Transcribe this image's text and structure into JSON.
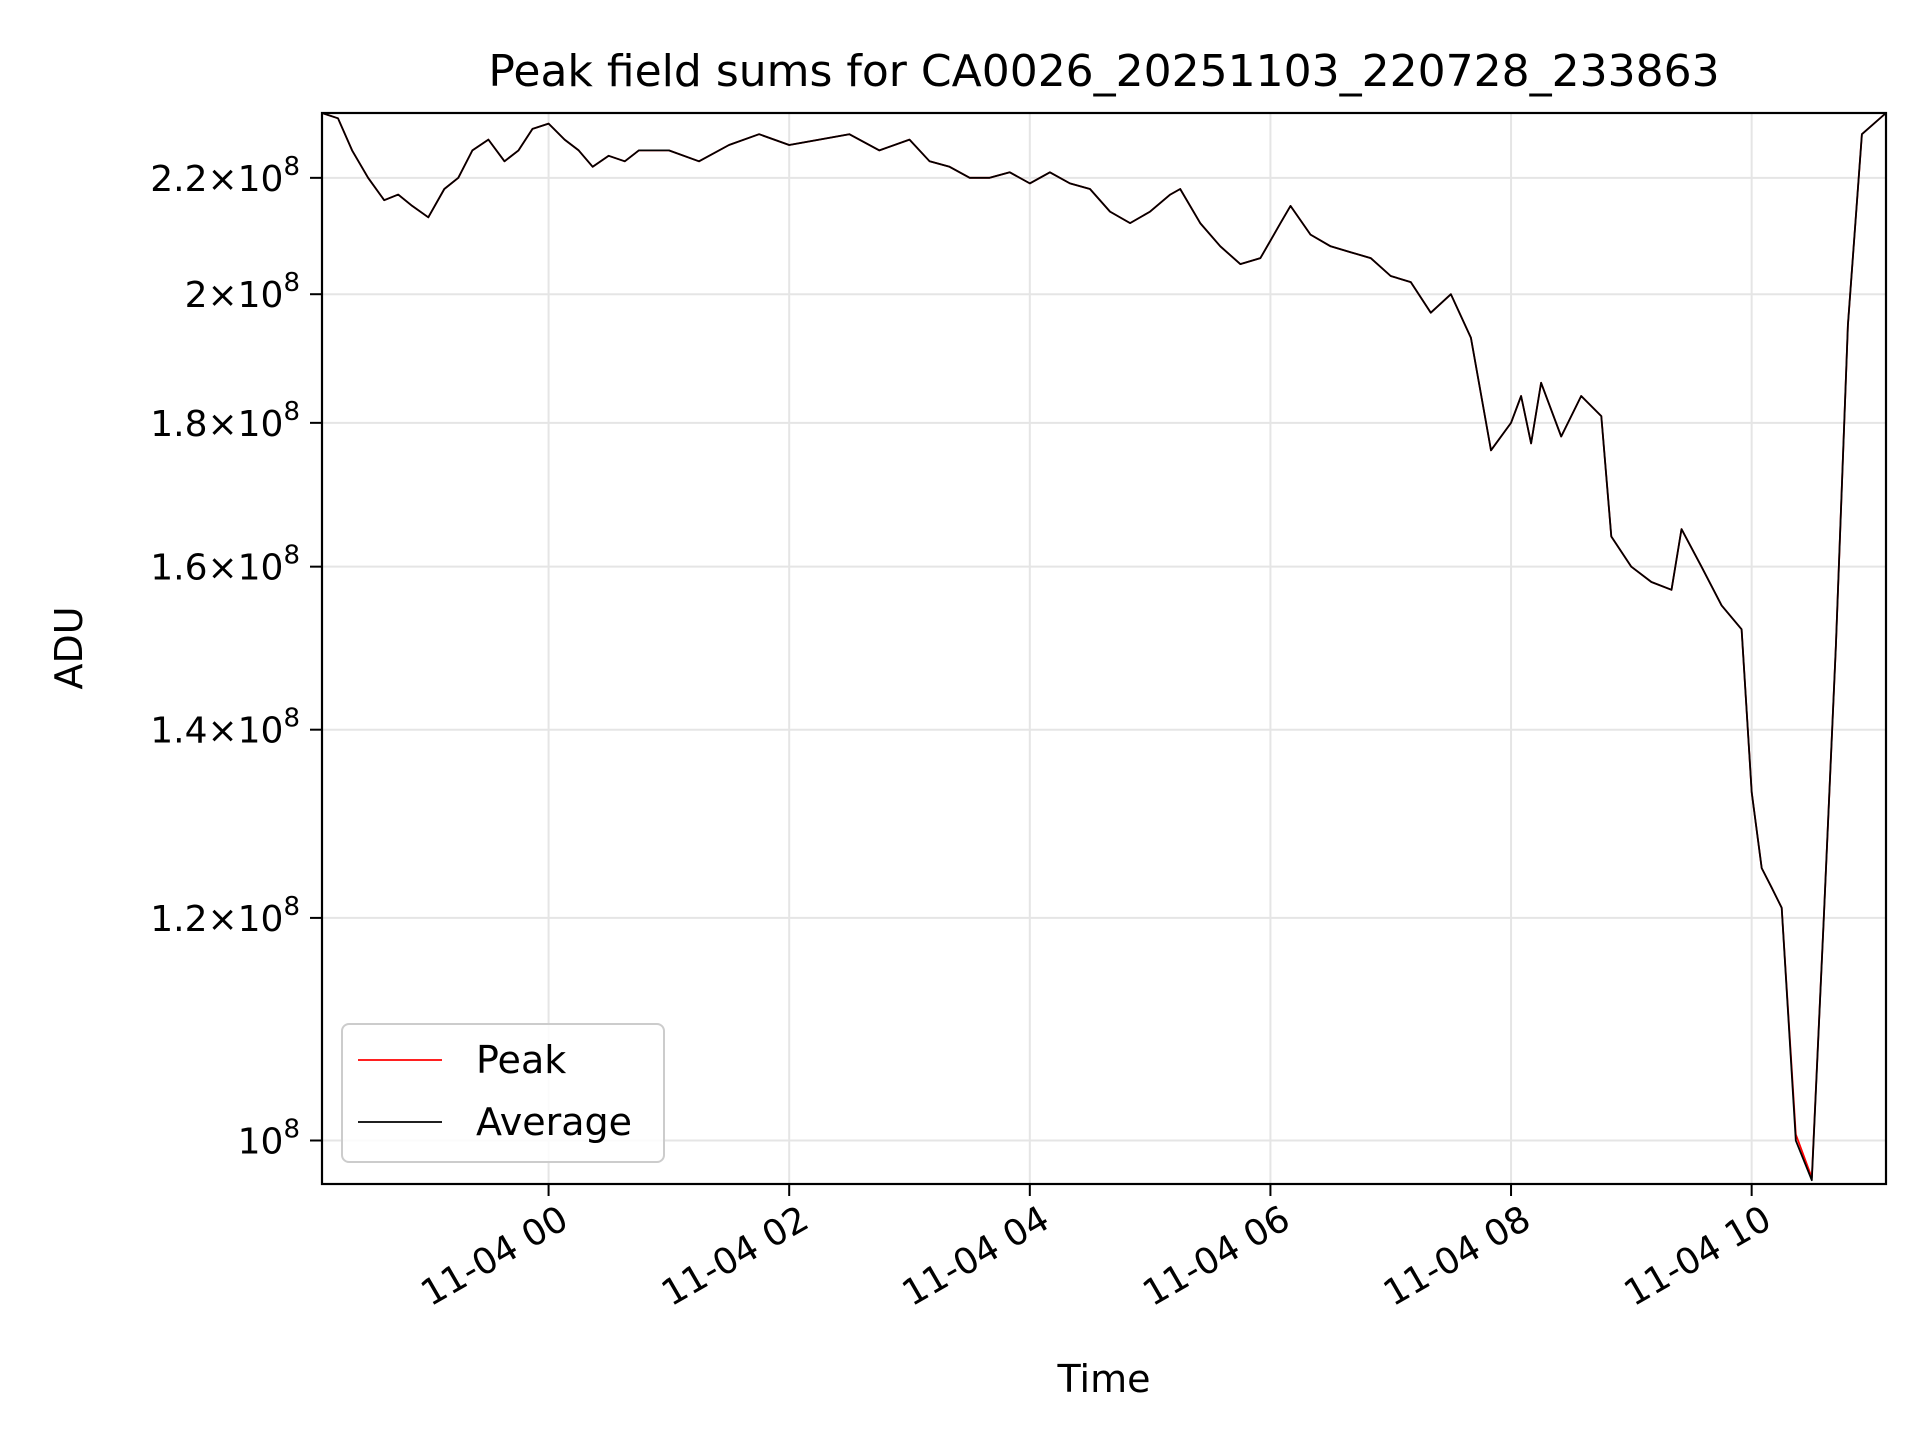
{
  "chart_data": {
    "type": "line",
    "title": "Peak field sums for CA0026_20251103_220728_233863",
    "xlabel": "Time",
    "ylabel": "ADU",
    "yscale": "log",
    "grid": true,
    "legend_position": "lower-left",
    "xlim": [
      "2025-11-03 22:07",
      "2025-11-04 11:07"
    ],
    "ylim": [
      96500000,
      232000000
    ],
    "x_ticks": [
      {
        "value": "2025-11-04 00:00",
        "label": "11-04 00"
      },
      {
        "value": "2025-11-04 02:00",
        "label": "11-04 02"
      },
      {
        "value": "2025-11-04 04:00",
        "label": "11-04 04"
      },
      {
        "value": "2025-11-04 06:00",
        "label": "11-04 06"
      },
      {
        "value": "2025-11-04 08:00",
        "label": "11-04 08"
      },
      {
        "value": "2025-11-04 10:00",
        "label": "11-04 10"
      }
    ],
    "y_ticks": [
      {
        "value": 100000000,
        "mantissa": "",
        "exponent": "8"
      },
      {
        "value": 120000000,
        "mantissa": "1.2",
        "exponent": "8"
      },
      {
        "value": 140000000,
        "mantissa": "1.4",
        "exponent": "8"
      },
      {
        "value": 160000000,
        "mantissa": "1.6",
        "exponent": "8"
      },
      {
        "value": 180000000,
        "mantissa": "1.8",
        "exponent": "8"
      },
      {
        "value": 200000000,
        "mantissa": "2",
        "exponent": "8"
      },
      {
        "value": 220000000,
        "mantissa": "2.2",
        "exponent": "8"
      }
    ],
    "series": [
      {
        "name": "Peak",
        "color": "#ff0000",
        "points": [
          [
            "2025-11-03 22:07",
            232000000
          ],
          [
            "2025-11-03 22:15",
            231000000
          ],
          [
            "2025-11-03 22:22",
            225000000
          ],
          [
            "2025-11-03 22:30",
            220000000
          ],
          [
            "2025-11-03 22:38",
            216000000
          ],
          [
            "2025-11-03 22:45",
            217000000
          ],
          [
            "2025-11-03 22:52",
            215000000
          ],
          [
            "2025-11-03 23:00",
            213000000
          ],
          [
            "2025-11-03 23:08",
            218000000
          ],
          [
            "2025-11-03 23:15",
            220000000
          ],
          [
            "2025-11-03 23:22",
            225000000
          ],
          [
            "2025-11-03 23:30",
            227000000
          ],
          [
            "2025-11-03 23:38",
            223000000
          ],
          [
            "2025-11-03 23:45",
            225000000
          ],
          [
            "2025-11-03 23:52",
            229000000
          ],
          [
            "2025-11-04 00:00",
            230000000
          ],
          [
            "2025-11-04 00:08",
            227000000
          ],
          [
            "2025-11-04 00:15",
            225000000
          ],
          [
            "2025-11-04 00:22",
            222000000
          ],
          [
            "2025-11-04 00:30",
            224000000
          ],
          [
            "2025-11-04 00:38",
            223000000
          ],
          [
            "2025-11-04 00:45",
            225000000
          ],
          [
            "2025-11-04 01:00",
            225000000
          ],
          [
            "2025-11-04 01:15",
            223000000
          ],
          [
            "2025-11-04 01:30",
            226000000
          ],
          [
            "2025-11-04 01:45",
            228000000
          ],
          [
            "2025-11-04 02:00",
            226000000
          ],
          [
            "2025-11-04 02:15",
            227000000
          ],
          [
            "2025-11-04 02:30",
            228000000
          ],
          [
            "2025-11-04 02:45",
            225000000
          ],
          [
            "2025-11-04 03:00",
            227000000
          ],
          [
            "2025-11-04 03:10",
            223000000
          ],
          [
            "2025-11-04 03:20",
            222000000
          ],
          [
            "2025-11-04 03:30",
            220000000
          ],
          [
            "2025-11-04 03:40",
            220000000
          ],
          [
            "2025-11-04 03:50",
            221000000
          ],
          [
            "2025-11-04 04:00",
            219000000
          ],
          [
            "2025-11-04 04:10",
            221000000
          ],
          [
            "2025-11-04 04:20",
            219000000
          ],
          [
            "2025-11-04 04:30",
            218000000
          ],
          [
            "2025-11-04 04:40",
            214000000
          ],
          [
            "2025-11-04 04:50",
            212000000
          ],
          [
            "2025-11-04 05:00",
            214000000
          ],
          [
            "2025-11-04 05:10",
            217000000
          ],
          [
            "2025-11-04 05:15",
            218000000
          ],
          [
            "2025-11-04 05:25",
            212000000
          ],
          [
            "2025-11-04 05:35",
            208000000
          ],
          [
            "2025-11-04 05:45",
            205000000
          ],
          [
            "2025-11-04 05:55",
            206000000
          ],
          [
            "2025-11-04 06:05",
            212000000
          ],
          [
            "2025-11-04 06:10",
            215000000
          ],
          [
            "2025-11-04 06:20",
            210000000
          ],
          [
            "2025-11-04 06:30",
            208000000
          ],
          [
            "2025-11-04 06:40",
            207000000
          ],
          [
            "2025-11-04 06:50",
            206000000
          ],
          [
            "2025-11-04 07:00",
            203000000
          ],
          [
            "2025-11-04 07:10",
            202000000
          ],
          [
            "2025-11-04 07:20",
            197000000
          ],
          [
            "2025-11-04 07:30",
            200000000
          ],
          [
            "2025-11-04 07:40",
            193000000
          ],
          [
            "2025-11-04 07:50",
            176000000
          ],
          [
            "2025-11-04 08:00",
            180000000
          ],
          [
            "2025-11-04 08:05",
            184000000
          ],
          [
            "2025-11-04 08:10",
            177000000
          ],
          [
            "2025-11-04 08:15",
            186000000
          ],
          [
            "2025-11-04 08:25",
            178000000
          ],
          [
            "2025-11-04 08:35",
            184000000
          ],
          [
            "2025-11-04 08:45",
            181000000
          ],
          [
            "2025-11-04 08:50",
            164000000
          ],
          [
            "2025-11-04 09:00",
            160000000
          ],
          [
            "2025-11-04 09:10",
            158000000
          ],
          [
            "2025-11-04 09:20",
            157000000
          ],
          [
            "2025-11-04 09:25",
            165000000
          ],
          [
            "2025-11-04 09:35",
            160000000
          ],
          [
            "2025-11-04 09:45",
            155000000
          ],
          [
            "2025-11-04 09:55",
            152000000
          ],
          [
            "2025-11-04 10:00",
            133000000
          ],
          [
            "2025-11-04 10:05",
            125000000
          ],
          [
            "2025-11-04 10:10",
            123000000
          ],
          [
            "2025-11-04 10:15",
            121000000
          ],
          [
            "2025-11-04 10:22",
            100500000
          ],
          [
            "2025-11-04 10:30",
            97000000
          ],
          [
            "2025-11-04 10:36",
            120000000
          ],
          [
            "2025-11-04 10:42",
            150000000
          ],
          [
            "2025-11-04 10:48",
            195000000
          ],
          [
            "2025-11-04 10:55",
            228000000
          ],
          [
            "2025-11-04 11:07",
            232000000
          ]
        ]
      },
      {
        "name": "Average",
        "color": "#000000",
        "points": [
          [
            "2025-11-03 22:07",
            232000000
          ],
          [
            "2025-11-03 22:15",
            231000000
          ],
          [
            "2025-11-03 22:22",
            225000000
          ],
          [
            "2025-11-03 22:30",
            220000000
          ],
          [
            "2025-11-03 22:38",
            216000000
          ],
          [
            "2025-11-03 22:45",
            217000000
          ],
          [
            "2025-11-03 22:52",
            215000000
          ],
          [
            "2025-11-03 23:00",
            213000000
          ],
          [
            "2025-11-03 23:08",
            218000000
          ],
          [
            "2025-11-03 23:15",
            220000000
          ],
          [
            "2025-11-03 23:22",
            225000000
          ],
          [
            "2025-11-03 23:30",
            227000000
          ],
          [
            "2025-11-03 23:38",
            223000000
          ],
          [
            "2025-11-03 23:45",
            225000000
          ],
          [
            "2025-11-03 23:52",
            229000000
          ],
          [
            "2025-11-04 00:00",
            230000000
          ],
          [
            "2025-11-04 00:08",
            227000000
          ],
          [
            "2025-11-04 00:15",
            225000000
          ],
          [
            "2025-11-04 00:22",
            222000000
          ],
          [
            "2025-11-04 00:30",
            224000000
          ],
          [
            "2025-11-04 00:38",
            223000000
          ],
          [
            "2025-11-04 00:45",
            225000000
          ],
          [
            "2025-11-04 01:00",
            225000000
          ],
          [
            "2025-11-04 01:15",
            223000000
          ],
          [
            "2025-11-04 01:30",
            226000000
          ],
          [
            "2025-11-04 01:45",
            228000000
          ],
          [
            "2025-11-04 02:00",
            226000000
          ],
          [
            "2025-11-04 02:15",
            227000000
          ],
          [
            "2025-11-04 02:30",
            228000000
          ],
          [
            "2025-11-04 02:45",
            225000000
          ],
          [
            "2025-11-04 03:00",
            227000000
          ],
          [
            "2025-11-04 03:10",
            223000000
          ],
          [
            "2025-11-04 03:20",
            222000000
          ],
          [
            "2025-11-04 03:30",
            220000000
          ],
          [
            "2025-11-04 03:40",
            220000000
          ],
          [
            "2025-11-04 03:50",
            221000000
          ],
          [
            "2025-11-04 04:00",
            219000000
          ],
          [
            "2025-11-04 04:10",
            221000000
          ],
          [
            "2025-11-04 04:20",
            219000000
          ],
          [
            "2025-11-04 04:30",
            218000000
          ],
          [
            "2025-11-04 04:40",
            214000000
          ],
          [
            "2025-11-04 04:50",
            212000000
          ],
          [
            "2025-11-04 05:00",
            214000000
          ],
          [
            "2025-11-04 05:10",
            217000000
          ],
          [
            "2025-11-04 05:15",
            218000000
          ],
          [
            "2025-11-04 05:25",
            212000000
          ],
          [
            "2025-11-04 05:35",
            208000000
          ],
          [
            "2025-11-04 05:45",
            205000000
          ],
          [
            "2025-11-04 05:55",
            206000000
          ],
          [
            "2025-11-04 06:05",
            212000000
          ],
          [
            "2025-11-04 06:10",
            215000000
          ],
          [
            "2025-11-04 06:20",
            210000000
          ],
          [
            "2025-11-04 06:30",
            208000000
          ],
          [
            "2025-11-04 06:40",
            207000000
          ],
          [
            "2025-11-04 06:50",
            206000000
          ],
          [
            "2025-11-04 07:00",
            203000000
          ],
          [
            "2025-11-04 07:10",
            202000000
          ],
          [
            "2025-11-04 07:20",
            197000000
          ],
          [
            "2025-11-04 07:30",
            200000000
          ],
          [
            "2025-11-04 07:40",
            193000000
          ],
          [
            "2025-11-04 07:50",
            176000000
          ],
          [
            "2025-11-04 08:00",
            180000000
          ],
          [
            "2025-11-04 08:05",
            184000000
          ],
          [
            "2025-11-04 08:10",
            177000000
          ],
          [
            "2025-11-04 08:15",
            186000000
          ],
          [
            "2025-11-04 08:25",
            178000000
          ],
          [
            "2025-11-04 08:35",
            184000000
          ],
          [
            "2025-11-04 08:45",
            181000000
          ],
          [
            "2025-11-04 08:50",
            164000000
          ],
          [
            "2025-11-04 09:00",
            160000000
          ],
          [
            "2025-11-04 09:10",
            158000000
          ],
          [
            "2025-11-04 09:20",
            157000000
          ],
          [
            "2025-11-04 09:25",
            165000000
          ],
          [
            "2025-11-04 09:35",
            160000000
          ],
          [
            "2025-11-04 09:45",
            155000000
          ],
          [
            "2025-11-04 09:55",
            152000000
          ],
          [
            "2025-11-04 10:00",
            133000000
          ],
          [
            "2025-11-04 10:05",
            125000000
          ],
          [
            "2025-11-04 10:10",
            123000000
          ],
          [
            "2025-11-04 10:15",
            121000000
          ],
          [
            "2025-11-04 10:22",
            100000000
          ],
          [
            "2025-11-04 10:30",
            96800000
          ],
          [
            "2025-11-04 10:36",
            120000000
          ],
          [
            "2025-11-04 10:42",
            150000000
          ],
          [
            "2025-11-04 10:48",
            195000000
          ],
          [
            "2025-11-04 10:55",
            228000000
          ],
          [
            "2025-11-04 11:07",
            232000000
          ]
        ]
      }
    ]
  }
}
